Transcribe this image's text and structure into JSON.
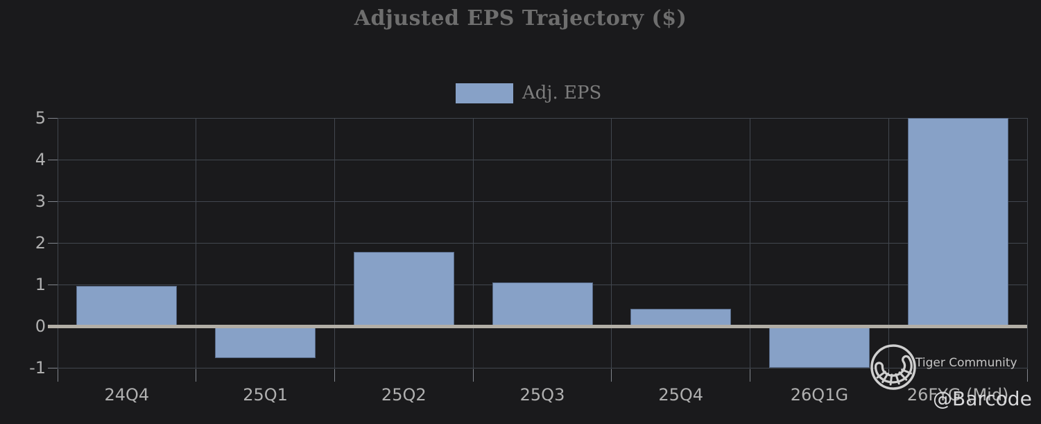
{
  "title": "Adjusted EPS Trajectory ($)",
  "legend": {
    "label": "Adj. EPS"
  },
  "watermark": {
    "community_label": "Tiger Community",
    "handle": "@Barcode",
    "logo_icon": "tiger-tail-in-circle"
  },
  "colors": {
    "background": "#1a1a1c",
    "bar": "#87a1c7",
    "grid": "#42474f",
    "zero_line": "#b2aea6",
    "axis_label": "#b0b0b0",
    "title": "#6e6e6e",
    "legend_label": "#7d7d7d",
    "tick": "#82868d",
    "watermark": "#d9d9d9"
  },
  "chart_data": {
    "type": "bar",
    "title": "Adjusted EPS Trajectory ($)",
    "categories": [
      "24Q4",
      "25Q1",
      "25Q2",
      "25Q3",
      "25Q4",
      "26Q1G",
      "26FYG (Mid)"
    ],
    "series": [
      {
        "name": "Adj. EPS",
        "values": [
          0.97,
          -0.77,
          1.79,
          1.05,
          0.42,
          -1.0,
          5.0
        ]
      }
    ],
    "xlabel": "",
    "ylabel": "",
    "ylim": [
      -1,
      5
    ],
    "yticks": [
      5,
      4,
      3,
      2,
      1,
      0,
      -1
    ],
    "grid": true,
    "legend_position": "top-center",
    "zero_line": true
  }
}
